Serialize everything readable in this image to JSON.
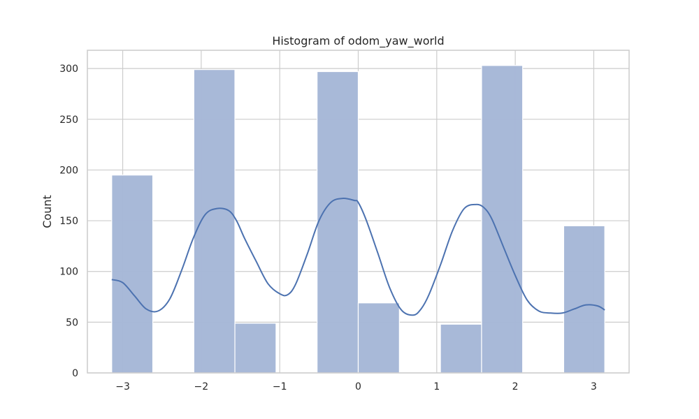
{
  "chart_data": {
    "type": "bar",
    "title": "Histogram of odom_yaw_world",
    "xlabel": "",
    "ylabel": "Count",
    "xlim": [
      -3.45,
      3.45
    ],
    "ylim": [
      0,
      318
    ],
    "x_ticks": [
      -3,
      -2,
      -1,
      0,
      1,
      2,
      3
    ],
    "x_tick_labels": [
      "−3",
      "−2",
      "−1",
      "0",
      "1",
      "2",
      "3"
    ],
    "y_ticks": [
      0,
      50,
      100,
      150,
      200,
      250,
      300
    ],
    "y_tick_labels": [
      "0",
      "50",
      "100",
      "150",
      "200",
      "250",
      "300"
    ],
    "grid": true,
    "bins": [
      {
        "x0": -3.14,
        "x1": -2.617,
        "count": 195
      },
      {
        "x0": -2.617,
        "x1": -2.094,
        "count": 0
      },
      {
        "x0": -2.094,
        "x1": -1.571,
        "count": 299
      },
      {
        "x0": -1.571,
        "x1": -1.047,
        "count": 49
      },
      {
        "x0": -1.047,
        "x1": -0.524,
        "count": 0
      },
      {
        "x0": -0.524,
        "x1": 0.0,
        "count": 297
      },
      {
        "x0": 0.0,
        "x1": 0.524,
        "count": 69
      },
      {
        "x0": 0.524,
        "x1": 1.047,
        "count": 0
      },
      {
        "x0": 1.047,
        "x1": 1.571,
        "count": 48
      },
      {
        "x0": 1.571,
        "x1": 2.094,
        "count": 303
      },
      {
        "x0": 2.094,
        "x1": 2.617,
        "count": 0
      },
      {
        "x0": 2.617,
        "x1": 3.14,
        "count": 145
      }
    ],
    "kde": {
      "x": [
        -3.14,
        -3.0,
        -2.85,
        -2.7,
        -2.55,
        -2.4,
        -2.25,
        -2.1,
        -1.95,
        -1.8,
        -1.65,
        -1.55,
        -1.45,
        -1.3,
        -1.15,
        -1.0,
        -0.9,
        -0.8,
        -0.65,
        -0.5,
        -0.35,
        -0.2,
        -0.05,
        0.0,
        0.1,
        0.25,
        0.4,
        0.55,
        0.7,
        0.8,
        0.9,
        1.05,
        1.2,
        1.35,
        1.5,
        1.6,
        1.7,
        1.85,
        2.0,
        2.15,
        2.3,
        2.45,
        2.6,
        2.75,
        2.9,
        3.05,
        3.14
      ],
      "y": [
        92,
        89,
        76,
        63,
        61,
        73,
        101,
        133,
        156,
        162,
        160,
        150,
        133,
        110,
        88,
        78,
        77,
        87,
        117,
        150,
        168,
        172,
        170,
        168,
        151,
        118,
        84,
        62,
        57,
        63,
        77,
        107,
        140,
        162,
        166,
        163,
        152,
        124,
        96,
        72,
        61,
        59,
        59,
        63,
        67,
        66,
        62
      ]
    },
    "colors": {
      "bar_fill": "#a5b7d7",
      "bar_edge": "#ffffff",
      "kde_line": "#4c72b0",
      "grid": "#cccccc",
      "axes_edge": "#cccccc"
    }
  }
}
